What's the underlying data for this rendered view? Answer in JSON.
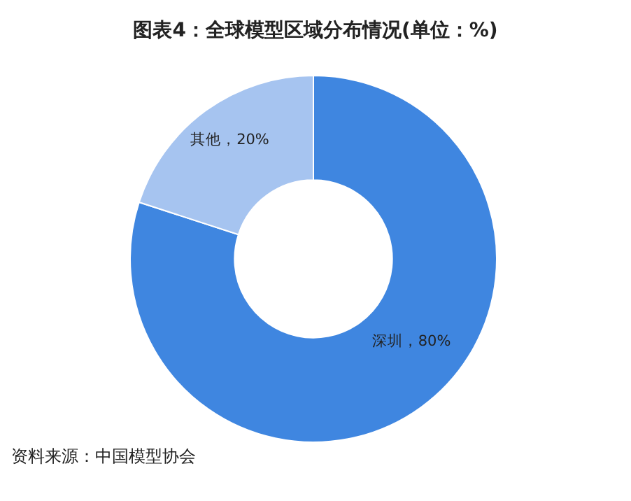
{
  "chart_data": {
    "type": "donut",
    "title": "图表4：全球模型区域分布情况(单位：%)",
    "categories": [
      "深圳",
      "其他"
    ],
    "values": [
      80,
      20
    ],
    "value_labels": [
      "，80%",
      "，20%"
    ],
    "colors": [
      "#3f86e0",
      "#a6c4f0"
    ],
    "annotations": [
      "资料来源：中国模型协会"
    ]
  }
}
